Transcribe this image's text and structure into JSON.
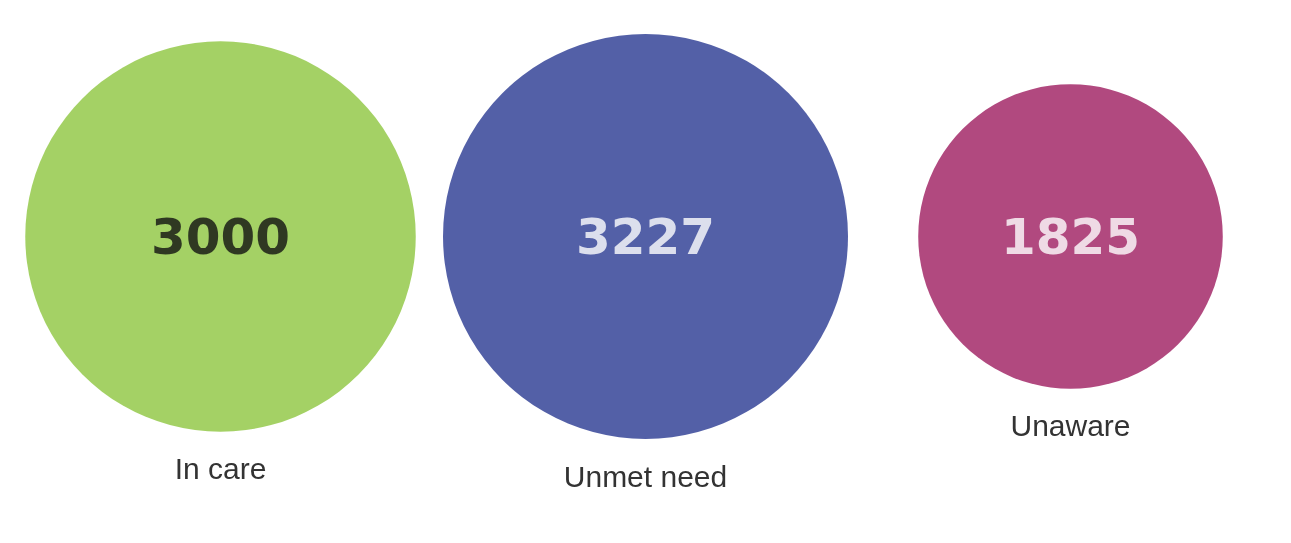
{
  "chart_data": {
    "type": "other",
    "categories": [
      "In care",
      "Unmet need",
      "Unaware"
    ],
    "values": [
      3000,
      3227,
      1825
    ],
    "colors": [
      "#8dc63f",
      "#283891",
      "#9e1b5f"
    ],
    "data_labels": true
  }
}
